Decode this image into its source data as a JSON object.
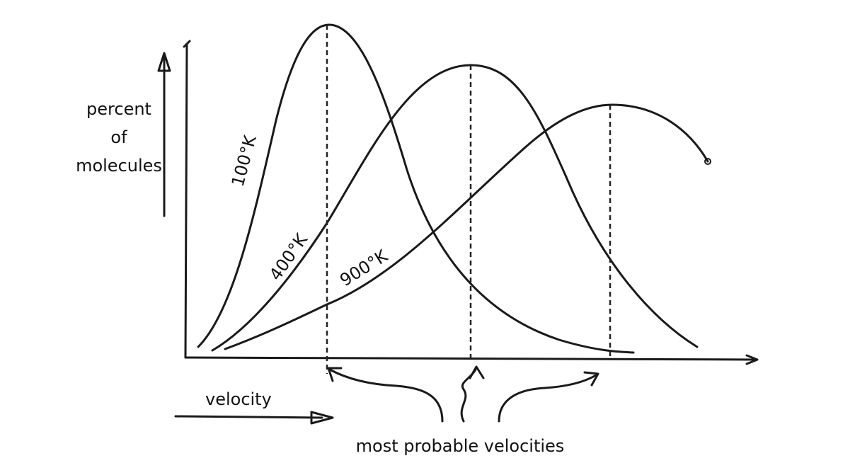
{
  "y_axis_label": [
    "percent",
    "of",
    "molecules"
  ],
  "x_axis_label": "velocity",
  "curves": [
    {
      "label": "100°K"
    },
    {
      "label": "400°K"
    },
    {
      "label": "900°K"
    }
  ],
  "annotation": "most probable velocities",
  "ink_color": "#1a1a1a"
}
